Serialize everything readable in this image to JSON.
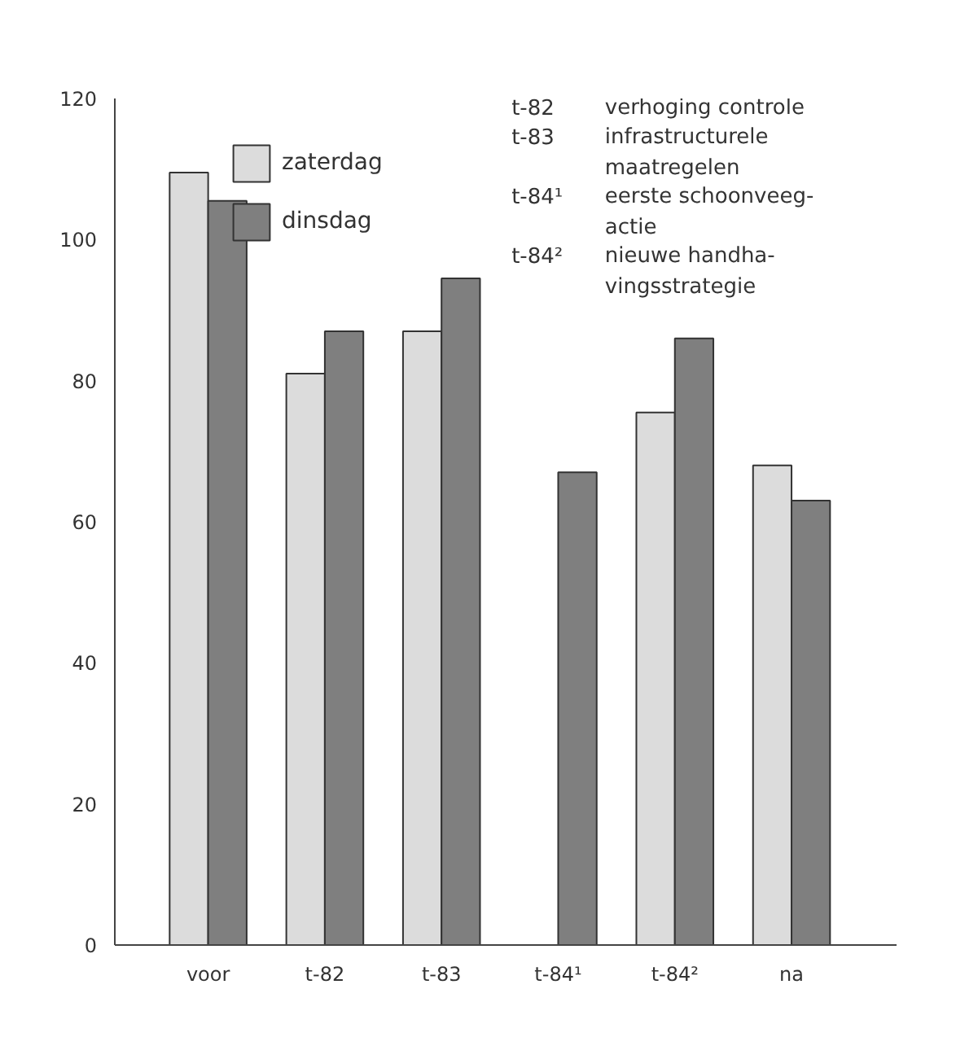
{
  "chart_data": {
    "type": "bar",
    "categories": [
      "voor",
      "t-82",
      "t-83",
      "t-84¹",
      "t-84²",
      "na"
    ],
    "series": [
      {
        "name": "zaterdag",
        "color": "#dcdcdc",
        "values": [
          109.5,
          81,
          87,
          null,
          75.5,
          68
        ]
      },
      {
        "name": "dinsdag",
        "color": "#7f7f7f",
        "values": [
          105.5,
          87,
          94.5,
          67,
          86,
          63
        ]
      }
    ],
    "ylim": [
      0,
      120
    ],
    "yticks": [
      0,
      20,
      40,
      60,
      80,
      100,
      120
    ],
    "grid": false,
    "legend": "top left",
    "annotations": [
      "t-82 verhoging controle",
      "t-83 infrastructurele\nmaatregelen",
      "t-84¹ eerste schoonveeg-\nactie",
      "t-84² nieuwe handha-\nvingsstrategie"
    ]
  }
}
